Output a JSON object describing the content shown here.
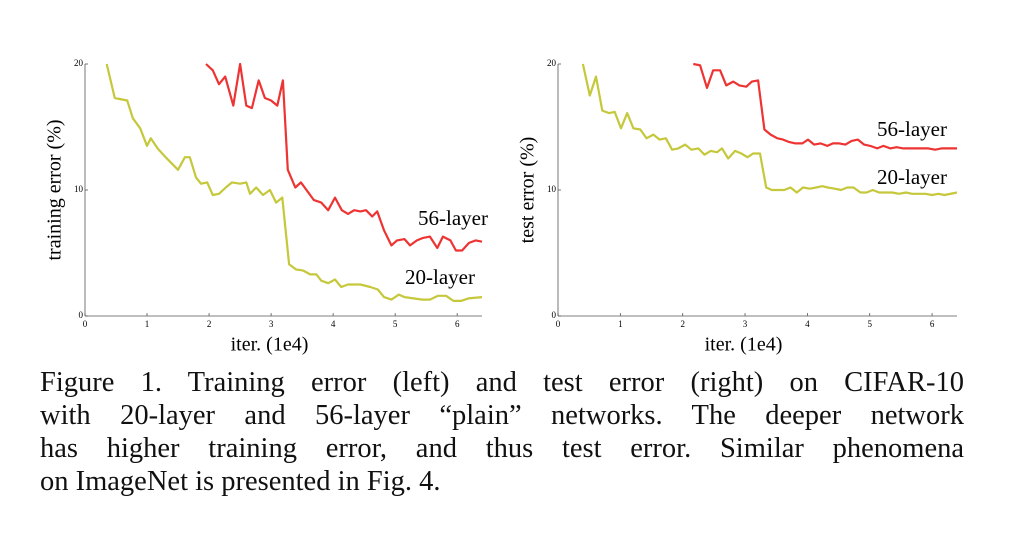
{
  "chart_data": [
    {
      "type": "line",
      "ylabel": "training error (%)",
      "xlabel": "iter. (1e4)",
      "xlim": [
        0,
        6.4
      ],
      "ylim": [
        0,
        20
      ],
      "xticks": [
        0,
        1,
        2,
        3,
        4,
        5,
        6
      ],
      "yticks": [
        0,
        10,
        20
      ],
      "series": [
        {
          "name": "56-layer",
          "color": "#ee3333",
          "x": [
            1.95,
            2.06,
            2.16,
            2.26,
            2.39,
            2.5,
            2.6,
            2.69,
            2.8,
            2.9,
            3.0,
            3.1,
            3.19,
            3.27,
            3.39,
            3.48,
            3.6,
            3.69,
            3.81,
            3.92,
            4.03,
            4.14,
            4.24,
            4.34,
            4.44,
            4.53,
            4.63,
            4.71,
            4.82,
            4.94,
            5.03,
            5.15,
            5.24,
            5.35,
            5.45,
            5.56,
            5.68,
            5.77,
            5.89,
            5.98,
            6.08,
            6.19,
            6.3,
            6.4
          ],
          "values": [
            20,
            19.5,
            18.4,
            19.0,
            16.7,
            20,
            16.7,
            16.5,
            18.7,
            17.3,
            17.1,
            16.7,
            18.7,
            11.6,
            10.2,
            10.6,
            9.8,
            9.2,
            9.0,
            8.4,
            9.4,
            8.4,
            8.1,
            8.4,
            8.3,
            8.4,
            7.9,
            8.3,
            6.8,
            5.6,
            6.0,
            6.1,
            5.6,
            6.0,
            6.2,
            6.3,
            5.4,
            6.3,
            6.0,
            5.2,
            5.2,
            5.8,
            6.0,
            5.9
          ]
        },
        {
          "name": "20-layer",
          "color": "#c5c83a",
          "x": [
            0.35,
            0.48,
            0.68,
            0.77,
            0.89,
            1.0,
            1.06,
            1.17,
            1.3,
            1.5,
            1.61,
            1.69,
            1.79,
            1.87,
            1.97,
            2.06,
            2.16,
            2.27,
            2.37,
            2.5,
            2.6,
            2.66,
            2.76,
            2.87,
            2.98,
            3.08,
            3.18,
            3.29,
            3.4,
            3.52,
            3.63,
            3.73,
            3.81,
            3.92,
            4.03,
            4.13,
            4.24,
            4.44,
            4.6,
            4.72,
            4.82,
            4.94,
            5.06,
            5.15,
            5.44,
            5.56,
            5.69,
            5.82,
            5.94,
            6.06,
            6.18,
            6.4
          ],
          "values": [
            20,
            17.3,
            17.1,
            15.7,
            14.9,
            13.5,
            14.1,
            13.3,
            12.6,
            11.6,
            12.6,
            12.6,
            11.0,
            10.5,
            10.6,
            9.6,
            9.7,
            10.2,
            10.6,
            10.5,
            10.6,
            9.7,
            10.2,
            9.6,
            10.0,
            9.0,
            9.4,
            4.1,
            3.7,
            3.6,
            3.3,
            3.3,
            2.8,
            2.6,
            2.9,
            2.3,
            2.5,
            2.5,
            2.3,
            2.1,
            1.5,
            1.3,
            1.7,
            1.5,
            1.3,
            1.3,
            1.6,
            1.6,
            1.2,
            1.2,
            1.4,
            1.5
          ]
        }
      ]
    },
    {
      "type": "line",
      "ylabel": "test error (%)",
      "xlabel": "iter. (1e4)",
      "xlim": [
        0,
        6.4
      ],
      "ylim": [
        0,
        20
      ],
      "xticks": [
        0,
        1,
        2,
        3,
        4,
        5,
        6
      ],
      "yticks": [
        0,
        10,
        20
      ],
      "series": [
        {
          "name": "56-layer",
          "color": "#ee3333",
          "x": [
            2.17,
            2.28,
            2.39,
            2.49,
            2.6,
            2.7,
            2.81,
            2.91,
            3.02,
            3.11,
            3.21,
            3.31,
            3.41,
            3.52,
            3.61,
            3.71,
            3.81,
            3.92,
            4.01,
            4.11,
            4.21,
            4.32,
            4.41,
            4.51,
            4.61,
            4.71,
            4.81,
            4.91,
            5.01,
            5.12,
            5.22,
            5.33,
            5.43,
            5.54,
            5.65,
            5.75,
            5.84,
            5.94,
            6.05,
            6.15,
            6.4
          ],
          "values": [
            20,
            19.9,
            18.1,
            19.5,
            19.5,
            18.3,
            18.6,
            18.3,
            18.2,
            18.6,
            18.7,
            14.8,
            14.4,
            14.1,
            14.0,
            13.8,
            13.7,
            13.7,
            14.0,
            13.6,
            13.7,
            13.5,
            13.7,
            13.7,
            13.6,
            13.9,
            14.0,
            13.6,
            13.5,
            13.3,
            13.5,
            13.3,
            13.4,
            13.3,
            13.3,
            13.3,
            13.3,
            13.3,
            13.2,
            13.3,
            13.3
          ]
        },
        {
          "name": "20-layer",
          "color": "#c5c83a",
          "x": [
            0.4,
            0.51,
            0.61,
            0.71,
            0.82,
            0.91,
            1.01,
            1.11,
            1.21,
            1.32,
            1.42,
            1.53,
            1.63,
            1.73,
            1.83,
            1.93,
            2.04,
            2.14,
            2.25,
            2.35,
            2.45,
            2.55,
            2.63,
            2.73,
            2.84,
            2.94,
            3.04,
            3.13,
            3.24,
            3.34,
            3.43,
            3.53,
            3.63,
            3.73,
            3.83,
            3.93,
            4.04,
            4.14,
            4.24,
            4.33,
            4.44,
            4.54,
            4.64,
            4.74,
            4.85,
            4.95,
            5.05,
            5.15,
            5.26,
            5.36,
            5.47,
            5.58,
            5.68,
            5.79,
            5.89,
            6.0,
            6.1,
            6.2,
            6.4
          ],
          "values": [
            20,
            17.5,
            19.0,
            16.3,
            16.1,
            16.2,
            14.9,
            16.1,
            14.9,
            14.8,
            14.1,
            14.4,
            14.0,
            14.1,
            13.2,
            13.3,
            13.6,
            13.2,
            13.3,
            12.8,
            13.1,
            13.0,
            13.3,
            12.5,
            13.1,
            12.9,
            12.6,
            12.9,
            12.9,
            10.2,
            10.0,
            10.0,
            10.0,
            10.2,
            9.8,
            10.2,
            10.1,
            10.2,
            10.3,
            10.2,
            10.1,
            10.0,
            10.2,
            10.2,
            9.8,
            9.8,
            10.0,
            9.8,
            9.8,
            9.8,
            9.7,
            9.8,
            9.7,
            9.7,
            9.7,
            9.6,
            9.7,
            9.6,
            9.8
          ]
        }
      ]
    }
  ],
  "caption": [
    "Figure 1. Training error (left) and test error (right) on CIFAR-10",
    "with 20-layer and 56-layer “plain” networks. The deeper network",
    "has higher training error, and thus test error. Similar phenomena",
    "on ImageNet is presented in Fig. 4."
  ]
}
